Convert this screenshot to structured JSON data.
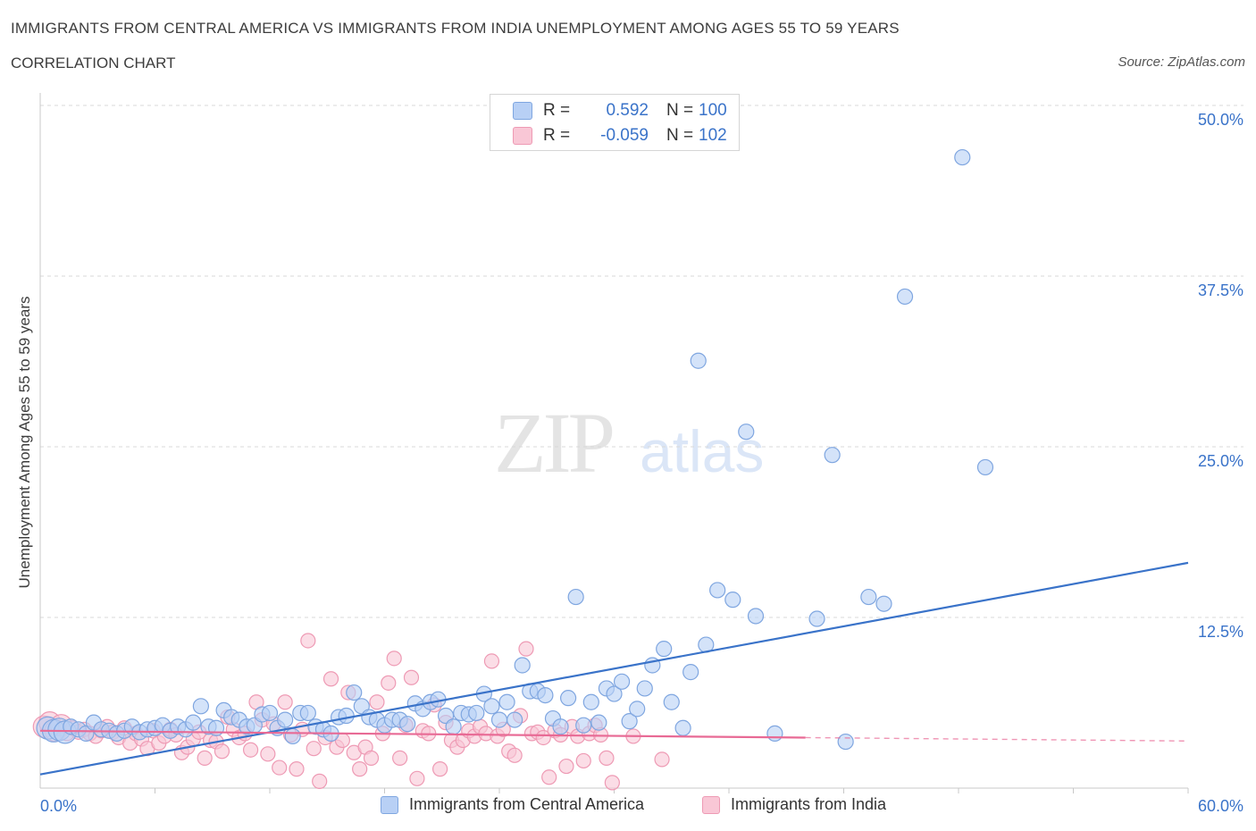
{
  "header": {
    "title": "IMMIGRANTS FROM CENTRAL AMERICA VS IMMIGRANTS FROM INDIA UNEMPLOYMENT AMONG AGES 55 TO 59 YEARS",
    "subtitle": "CORRELATION CHART",
    "source": "Source: ZipAtlas.com"
  },
  "legend": {
    "blue": {
      "r_label": "R =",
      "r_value": "0.592",
      "n_label": "N =",
      "n_value": "100"
    },
    "pink": {
      "r_label": "R =",
      "r_value": "-0.059",
      "n_label": "N =",
      "n_value": "102"
    }
  },
  "watermark": {
    "zip": "ZIP",
    "atlas": "atlas"
  },
  "colors": {
    "blue": "#3a73c9",
    "blue_fill": "#b8d0f5",
    "pink": "#e86a95",
    "pink_fill": "#f9c7d6",
    "grid": "#d9d9d9",
    "axis_text": "#3a73c9"
  },
  "chart_data": {
    "type": "scatter",
    "xlabel": "",
    "ylabel": "Unemployment Among Ages 55 to 59 years",
    "xlim": [
      0,
      60
    ],
    "ylim": [
      0,
      50
    ],
    "x_tick_labels": [
      "0.0%",
      "60.0%"
    ],
    "y_tick_labels": [
      "12.5%",
      "25.0%",
      "37.5%",
      "50.0%"
    ],
    "y_ticks": [
      12.5,
      25.0,
      37.5,
      50.0
    ],
    "grid": true,
    "legend_position": "bottom",
    "series": [
      {
        "name": "Immigrants from Central America",
        "color": "#3a73c9",
        "trend": {
          "x": [
            0,
            60
          ],
          "y": [
            1.0,
            16.5
          ]
        },
        "points": [
          [
            0.4,
            4.4
          ],
          [
            0.7,
            4.2
          ],
          [
            1.0,
            4.3
          ],
          [
            1.3,
            4.1
          ],
          [
            1.6,
            4.5
          ],
          [
            2.0,
            4.3
          ],
          [
            2.4,
            4.0
          ],
          [
            2.8,
            4.8
          ],
          [
            3.2,
            4.3
          ],
          [
            3.6,
            4.2
          ],
          [
            4.0,
            4.0
          ],
          [
            4.4,
            4.2
          ],
          [
            4.8,
            4.5
          ],
          [
            5.2,
            4.1
          ],
          [
            5.6,
            4.3
          ],
          [
            6.0,
            4.4
          ],
          [
            6.4,
            4.6
          ],
          [
            6.8,
            4.2
          ],
          [
            7.2,
            4.5
          ],
          [
            7.6,
            4.3
          ],
          [
            8.0,
            4.8
          ],
          [
            8.4,
            6.0
          ],
          [
            8.8,
            4.5
          ],
          [
            9.2,
            4.4
          ],
          [
            9.6,
            5.7
          ],
          [
            10.0,
            5.2
          ],
          [
            10.4,
            5.0
          ],
          [
            10.8,
            4.5
          ],
          [
            11.2,
            4.6
          ],
          [
            11.6,
            5.4
          ],
          [
            12.0,
            5.5
          ],
          [
            12.4,
            4.4
          ],
          [
            12.8,
            5.0
          ],
          [
            13.2,
            3.8
          ],
          [
            13.6,
            5.5
          ],
          [
            14.0,
            5.5
          ],
          [
            14.4,
            4.5
          ],
          [
            14.8,
            4.3
          ],
          [
            15.2,
            4.0
          ],
          [
            15.6,
            5.2
          ],
          [
            16.0,
            5.3
          ],
          [
            16.4,
            7.0
          ],
          [
            16.8,
            6.0
          ],
          [
            17.2,
            5.2
          ],
          [
            17.6,
            5.0
          ],
          [
            18.0,
            4.6
          ],
          [
            18.4,
            5.0
          ],
          [
            18.8,
            5.0
          ],
          [
            19.2,
            4.7
          ],
          [
            19.6,
            6.2
          ],
          [
            20.0,
            5.8
          ],
          [
            20.4,
            6.3
          ],
          [
            20.8,
            6.5
          ],
          [
            21.2,
            5.3
          ],
          [
            21.6,
            4.5
          ],
          [
            22.0,
            5.5
          ],
          [
            22.4,
            5.4
          ],
          [
            22.8,
            5.5
          ],
          [
            23.2,
            6.9
          ],
          [
            23.6,
            6.0
          ],
          [
            24.0,
            5.0
          ],
          [
            24.4,
            6.3
          ],
          [
            24.8,
            5.0
          ],
          [
            25.2,
            9.0
          ],
          [
            25.6,
            7.1
          ],
          [
            26.0,
            7.1
          ],
          [
            26.4,
            6.8
          ],
          [
            26.8,
            5.1
          ],
          [
            27.2,
            4.5
          ],
          [
            27.6,
            6.6
          ],
          [
            28.0,
            14.0
          ],
          [
            28.4,
            4.6
          ],
          [
            28.8,
            6.3
          ],
          [
            29.2,
            4.8
          ],
          [
            29.6,
            7.3
          ],
          [
            30.0,
            6.9
          ],
          [
            30.4,
            7.8
          ],
          [
            30.8,
            4.9
          ],
          [
            31.2,
            5.8
          ],
          [
            31.6,
            7.3
          ],
          [
            32.0,
            9.0
          ],
          [
            32.6,
            10.2
          ],
          [
            33.0,
            6.3
          ],
          [
            33.6,
            4.4
          ],
          [
            34.0,
            8.5
          ],
          [
            34.4,
            31.3
          ],
          [
            34.8,
            10.5
          ],
          [
            35.4,
            14.5
          ],
          [
            36.2,
            13.8
          ],
          [
            36.9,
            26.1
          ],
          [
            37.4,
            12.6
          ],
          [
            38.4,
            4.0
          ],
          [
            40.6,
            12.4
          ],
          [
            41.4,
            24.4
          ],
          [
            42.1,
            3.4
          ],
          [
            43.3,
            14.0
          ],
          [
            44.1,
            13.5
          ],
          [
            45.2,
            36.0
          ],
          [
            48.2,
            46.2
          ],
          [
            49.4,
            23.5
          ]
        ]
      },
      {
        "name": "Immigrants from India",
        "color": "#e86a95",
        "trend": {
          "x": [
            0,
            40
          ],
          "y": [
            4.2,
            3.7
          ]
        },
        "points": [
          [
            0.2,
            4.5
          ],
          [
            0.5,
            4.8
          ],
          [
            0.8,
            4.2
          ],
          [
            1.1,
            4.6
          ],
          [
            1.4,
            4.0
          ],
          [
            1.7,
            4.4
          ],
          [
            2.0,
            4.1
          ],
          [
            2.3,
            4.3
          ],
          [
            2.6,
            4.0
          ],
          [
            2.9,
            3.8
          ],
          [
            3.2,
            4.2
          ],
          [
            3.5,
            4.5
          ],
          [
            3.8,
            4.1
          ],
          [
            4.1,
            3.7
          ],
          [
            4.4,
            4.4
          ],
          [
            4.7,
            3.3
          ],
          [
            5.0,
            4.0
          ],
          [
            5.3,
            3.6
          ],
          [
            5.6,
            2.9
          ],
          [
            5.9,
            4.2
          ],
          [
            6.2,
            3.3
          ],
          [
            6.5,
            3.8
          ],
          [
            6.8,
            4.3
          ],
          [
            7.1,
            3.9
          ],
          [
            7.4,
            2.6
          ],
          [
            7.7,
            3.0
          ],
          [
            8.0,
            3.6
          ],
          [
            8.3,
            4.1
          ],
          [
            8.6,
            2.2
          ],
          [
            8.9,
            3.5
          ],
          [
            9.2,
            3.4
          ],
          [
            9.5,
            2.7
          ],
          [
            9.8,
            5.2
          ],
          [
            10.1,
            4.3
          ],
          [
            10.4,
            3.7
          ],
          [
            10.7,
            4.0
          ],
          [
            11.0,
            2.8
          ],
          [
            11.3,
            6.3
          ],
          [
            11.6,
            5.0
          ],
          [
            11.9,
            2.5
          ],
          [
            12.2,
            4.7
          ],
          [
            12.5,
            1.5
          ],
          [
            12.8,
            6.3
          ],
          [
            13.1,
            3.9
          ],
          [
            13.4,
            1.4
          ],
          [
            13.7,
            4.3
          ],
          [
            14.0,
            10.8
          ],
          [
            14.3,
            2.9
          ],
          [
            14.6,
            0.5
          ],
          [
            14.9,
            3.7
          ],
          [
            15.2,
            8.0
          ],
          [
            15.5,
            3.0
          ],
          [
            15.8,
            3.5
          ],
          [
            16.1,
            7.0
          ],
          [
            16.4,
            2.6
          ],
          [
            16.7,
            1.4
          ],
          [
            17.0,
            3.0
          ],
          [
            17.3,
            2.2
          ],
          [
            17.6,
            6.3
          ],
          [
            17.9,
            4.0
          ],
          [
            18.2,
            7.7
          ],
          [
            18.5,
            9.5
          ],
          [
            18.8,
            2.2
          ],
          [
            19.1,
            4.6
          ],
          [
            19.4,
            8.1
          ],
          [
            19.7,
            0.7
          ],
          [
            20.0,
            4.2
          ],
          [
            20.3,
            4.0
          ],
          [
            20.6,
            6.1
          ],
          [
            20.9,
            1.4
          ],
          [
            21.2,
            4.8
          ],
          [
            21.5,
            3.5
          ],
          [
            21.8,
            3.0
          ],
          [
            22.1,
            3.5
          ],
          [
            22.4,
            4.2
          ],
          [
            22.7,
            3.8
          ],
          [
            23.0,
            4.5
          ],
          [
            23.3,
            4.0
          ],
          [
            23.6,
            9.3
          ],
          [
            23.9,
            3.8
          ],
          [
            24.2,
            4.3
          ],
          [
            24.5,
            2.7
          ],
          [
            24.8,
            2.4
          ],
          [
            25.1,
            5.3
          ],
          [
            25.4,
            10.2
          ],
          [
            25.7,
            4.0
          ],
          [
            26.0,
            4.1
          ],
          [
            26.3,
            3.7
          ],
          [
            26.6,
            0.8
          ],
          [
            26.9,
            4.2
          ],
          [
            27.2,
            3.9
          ],
          [
            27.5,
            1.6
          ],
          [
            27.8,
            4.5
          ],
          [
            28.1,
            3.8
          ],
          [
            28.4,
            2.0
          ],
          [
            28.7,
            4.0
          ],
          [
            29.0,
            4.6
          ],
          [
            29.3,
            3.9
          ],
          [
            29.6,
            2.2
          ],
          [
            29.9,
            0.4
          ],
          [
            31.0,
            3.8
          ],
          [
            32.5,
            2.1
          ]
        ]
      }
    ]
  },
  "bottom_legend": {
    "blue_label": "Immigrants from Central America",
    "pink_label": "Immigrants from India"
  }
}
